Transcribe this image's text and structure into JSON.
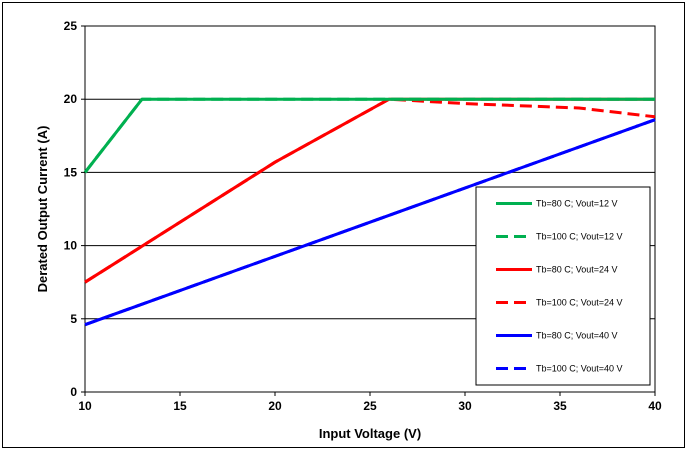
{
  "chart_data": {
    "type": "line",
    "title": "",
    "xlabel": "Input Voltage (V)",
    "ylabel": "Derated Output Current (A)",
    "xlim": [
      10,
      40
    ],
    "ylim": [
      0,
      25
    ],
    "xticks": [
      10,
      15,
      20,
      25,
      30,
      35,
      40
    ],
    "yticks": [
      0,
      5,
      10,
      15,
      20,
      25
    ],
    "grid": "horizontal",
    "legend_position": "right, lower",
    "series": [
      {
        "name": "Tb=80 C; Vout=12 V",
        "color": "#00b050",
        "style": "solid",
        "x": [
          10,
          13,
          40
        ],
        "y": [
          15,
          20,
          20
        ]
      },
      {
        "name": "Tb=100 C; Vout=12 V",
        "color": "#00b050",
        "style": "dashed",
        "x": [
          10,
          13,
          40
        ],
        "y": [
          15,
          20,
          20
        ]
      },
      {
        "name": "Tb=80 C; Vout=24 V",
        "color": "#ff0000",
        "style": "solid",
        "x": [
          10,
          20,
          26,
          40
        ],
        "y": [
          7.5,
          15.7,
          20,
          20
        ]
      },
      {
        "name": "Tb=100 C; Vout=24 V",
        "color": "#ff0000",
        "style": "dashed",
        "x": [
          10,
          20,
          26,
          30,
          36,
          40
        ],
        "y": [
          7.5,
          15.7,
          20,
          19.7,
          19.4,
          18.8
        ]
      },
      {
        "name": "Tb=80 C; Vout=40 V",
        "color": "#0000ff",
        "style": "solid",
        "x": [
          10,
          40
        ],
        "y": [
          4.6,
          18.6
        ]
      },
      {
        "name": "Tb=100 C; Vout=40 V",
        "color": "#0000ff",
        "style": "dashed",
        "x": [
          10,
          40
        ],
        "y": [
          4.6,
          18.6
        ]
      }
    ]
  }
}
